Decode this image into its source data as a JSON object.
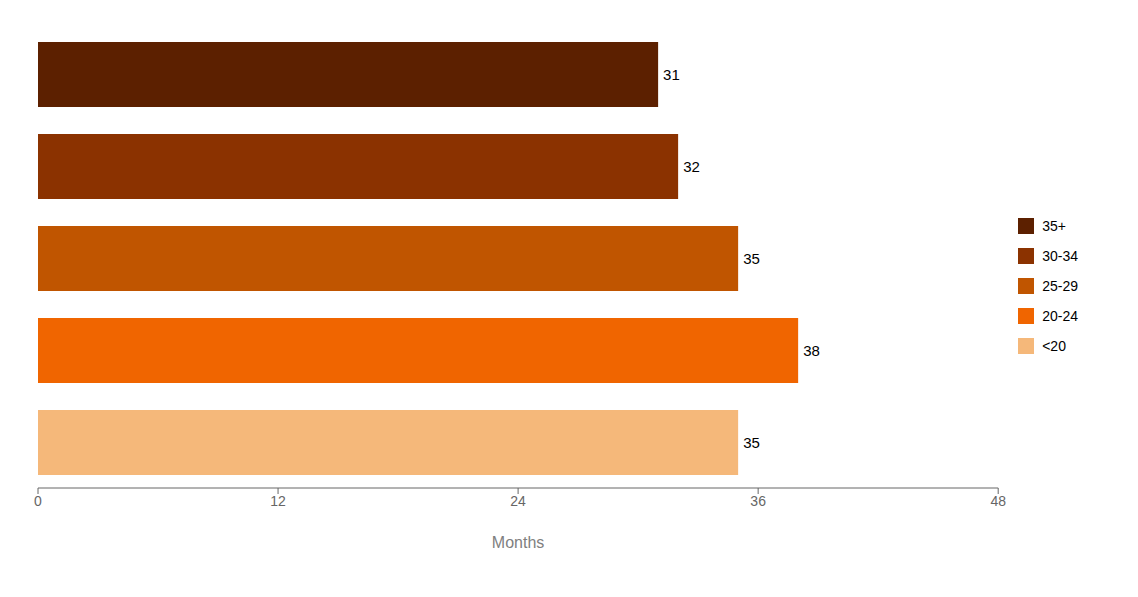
{
  "chart_data": {
    "type": "bar",
    "orientation": "horizontal",
    "categories": [
      "35+",
      "30-34",
      "25-29",
      "20-24",
      "<20"
    ],
    "values": [
      31,
      32,
      35,
      38,
      35
    ],
    "colors": [
      "#5C2000",
      "#8B3200",
      "#C05500",
      "#F06500",
      "#F5B87A"
    ],
    "xlim": [
      0,
      48
    ],
    "xticks": [
      0,
      12,
      24,
      36,
      48
    ],
    "xlabel": "Months",
    "data_labels": true,
    "tick_labels": "x",
    "legend": "right",
    "grid": false
  }
}
